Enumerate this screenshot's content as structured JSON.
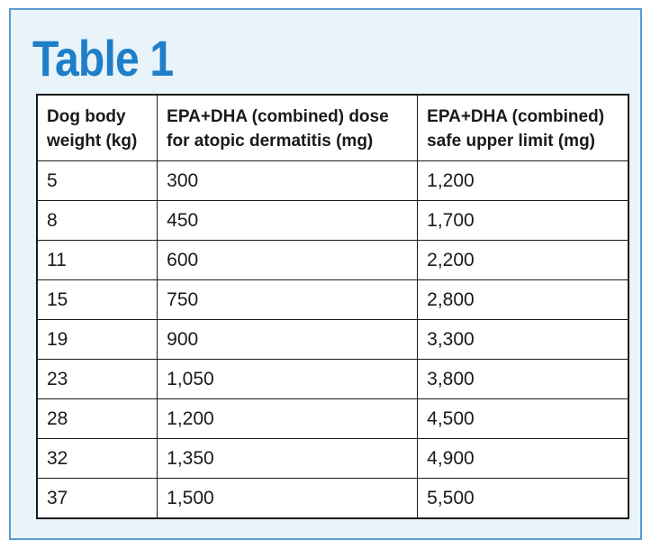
{
  "title": "Table 1",
  "table": {
    "headers": [
      {
        "line1": "Dog body",
        "line2": "weight (kg)"
      },
      {
        "line1": "EPA+DHA (combined) dose",
        "line2": "for atopic dermatitis (mg)"
      },
      {
        "line1": "EPA+DHA (combined)",
        "line2": "safe upper limit (mg)"
      }
    ],
    "rows": [
      [
        "5",
        "300",
        "1,200"
      ],
      [
        "8",
        "450",
        "1,700"
      ],
      [
        "11",
        "600",
        "2,200"
      ],
      [
        "15",
        "750",
        "2,800"
      ],
      [
        "19",
        "900",
        "3,300"
      ],
      [
        "23",
        "1,050",
        "3,800"
      ],
      [
        "28",
        "1,200",
        "4,500"
      ],
      [
        "32",
        "1,350",
        "4,900"
      ],
      [
        "37",
        "1,500",
        "5,500"
      ]
    ]
  },
  "colors": {
    "title": "#1e7ec8",
    "panel_background": "#e8f3fa",
    "panel_border": "#5b9bd0"
  }
}
